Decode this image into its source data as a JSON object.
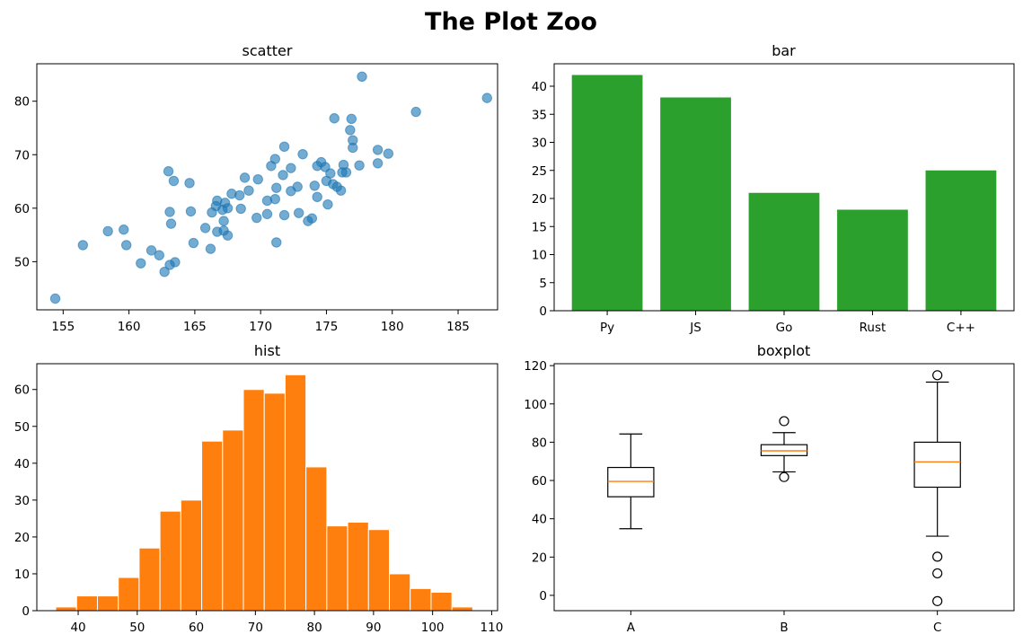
{
  "figure": {
    "title": "The Plot Zoo"
  },
  "chart_data": [
    {
      "type": "scatter",
      "title": "scatter",
      "xlabel": "",
      "ylabel": "",
      "xlim": [
        153,
        188
      ],
      "ylim": [
        41,
        87
      ],
      "xticks": [
        155,
        160,
        165,
        170,
        175,
        180,
        185
      ],
      "yticks": [
        50,
        60,
        70,
        80
      ],
      "color": "#1f77b4",
      "points": [
        [
          154.4,
          43.1
        ],
        [
          156.5,
          53.1
        ],
        [
          158.4,
          55.7
        ],
        [
          159.6,
          56.0
        ],
        [
          159.8,
          53.1
        ],
        [
          160.9,
          49.7
        ],
        [
          161.7,
          52.1
        ],
        [
          162.3,
          51.2
        ],
        [
          162.7,
          48.1
        ],
        [
          163.1,
          49.4
        ],
        [
          163.0,
          66.9
        ],
        [
          163.1,
          59.3
        ],
        [
          163.4,
          65.1
        ],
        [
          163.2,
          57.1
        ],
        [
          163.5,
          49.9
        ],
        [
          164.6,
          64.7
        ],
        [
          164.7,
          59.4
        ],
        [
          164.9,
          53.5
        ],
        [
          165.8,
          56.3
        ],
        [
          166.2,
          52.4
        ],
        [
          166.3,
          59.2
        ],
        [
          166.6,
          60.4
        ],
        [
          166.7,
          61.4
        ],
        [
          166.7,
          55.6
        ],
        [
          167.1,
          59.7
        ],
        [
          167.2,
          57.6
        ],
        [
          167.3,
          61.0
        ],
        [
          167.2,
          55.8
        ],
        [
          167.5,
          60.0
        ],
        [
          167.5,
          54.9
        ],
        [
          167.8,
          62.7
        ],
        [
          168.4,
          62.4
        ],
        [
          168.5,
          59.9
        ],
        [
          168.8,
          65.7
        ],
        [
          169.1,
          63.3
        ],
        [
          169.8,
          65.4
        ],
        [
          169.7,
          58.2
        ],
        [
          170.5,
          61.4
        ],
        [
          170.5,
          58.9
        ],
        [
          170.8,
          67.9
        ],
        [
          171.1,
          61.7
        ],
        [
          171.1,
          69.2
        ],
        [
          171.2,
          63.8
        ],
        [
          171.2,
          53.6
        ],
        [
          171.7,
          66.2
        ],
        [
          171.8,
          58.7
        ],
        [
          171.8,
          71.5
        ],
        [
          172.3,
          63.2
        ],
        [
          172.3,
          67.5
        ],
        [
          172.8,
          64.0
        ],
        [
          172.9,
          59.1
        ],
        [
          173.2,
          70.1
        ],
        [
          173.6,
          57.6
        ],
        [
          173.9,
          58.1
        ],
        [
          174.1,
          64.2
        ],
        [
          174.3,
          62.1
        ],
        [
          174.3,
          67.9
        ],
        [
          174.6,
          68.6
        ],
        [
          174.9,
          67.7
        ],
        [
          175.0,
          65.1
        ],
        [
          175.1,
          60.7
        ],
        [
          175.3,
          66.5
        ],
        [
          175.5,
          64.5
        ],
        [
          175.6,
          76.8
        ],
        [
          175.8,
          64.0
        ],
        [
          176.1,
          63.3
        ],
        [
          176.2,
          66.7
        ],
        [
          176.3,
          68.1
        ],
        [
          176.5,
          66.7
        ],
        [
          176.8,
          74.6
        ],
        [
          176.9,
          76.7
        ],
        [
          177.0,
          72.7
        ],
        [
          177.0,
          71.3
        ],
        [
          177.5,
          68.0
        ],
        [
          177.7,
          84.6
        ],
        [
          178.9,
          70.9
        ],
        [
          178.9,
          68.4
        ],
        [
          179.7,
          70.2
        ],
        [
          181.8,
          78.0
        ],
        [
          187.2,
          80.6
        ]
      ]
    },
    {
      "type": "bar",
      "title": "bar",
      "xlabel": "",
      "ylabel": "",
      "ylim": [
        0,
        44
      ],
      "yticks": [
        0,
        5,
        10,
        15,
        20,
        25,
        30,
        35,
        40
      ],
      "color": "#2ca02c",
      "categories": [
        "Py",
        "JS",
        "Go",
        "Rust",
        "C++"
      ],
      "values": [
        42,
        38,
        21,
        18,
        25
      ]
    },
    {
      "type": "histogram",
      "title": "hist",
      "xlabel": "",
      "ylabel": "",
      "xlim": [
        33,
        111
      ],
      "ylim": [
        0,
        67
      ],
      "xticks": [
        40,
        50,
        60,
        70,
        80,
        90,
        100,
        110
      ],
      "yticks": [
        0,
        10,
        20,
        30,
        40,
        50,
        60
      ],
      "color": "#ff7f0e",
      "bin_start": 36.2,
      "bin_width": 3.53,
      "counts": [
        1,
        4,
        4,
        9,
        17,
        27,
        30,
        46,
        49,
        60,
        59,
        64,
        39,
        23,
        24,
        22,
        10,
        6,
        5,
        1
      ]
    },
    {
      "type": "boxplot",
      "title": "boxplot",
      "xlabel": "",
      "ylabel": "",
      "ylim": [
        -8,
        121
      ],
      "yticks": [
        0,
        20,
        40,
        60,
        80,
        100,
        120
      ],
      "categories": [
        "A",
        "B",
        "C"
      ],
      "median_color": "#ff7f0e",
      "boxes": [
        {
          "label": "A",
          "whisker_low": 34.8,
          "q1": 51.5,
          "median": 59.5,
          "q3": 66.8,
          "whisker_high": 84.3,
          "outliers": []
        },
        {
          "label": "B",
          "whisker_low": 64.5,
          "q1": 73.0,
          "median": 75.5,
          "q3": 78.7,
          "whisker_high": 85.0,
          "outliers": [
            91.0,
            61.8
          ]
        },
        {
          "label": "C",
          "whisker_low": 30.9,
          "q1": 56.5,
          "median": 69.7,
          "q3": 80.0,
          "whisker_high": 111.4,
          "outliers": [
            115.0,
            20.2,
            11.5,
            -3.0
          ]
        }
      ]
    }
  ]
}
